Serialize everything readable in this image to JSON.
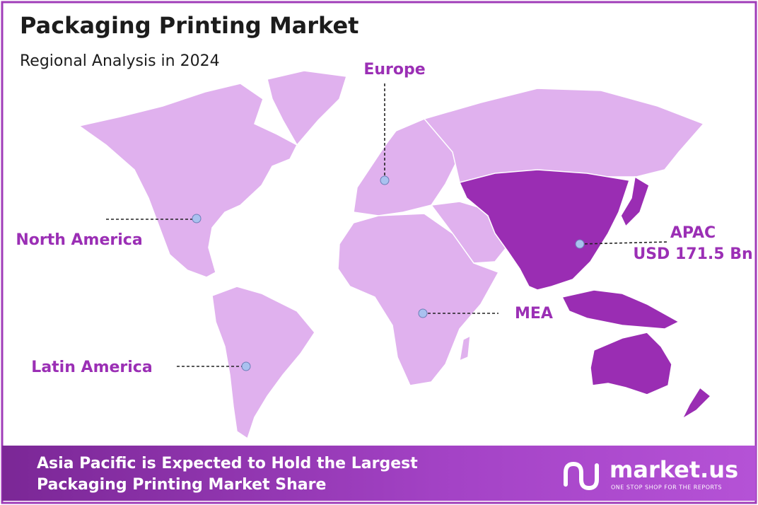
{
  "header": {
    "title": "Packaging Printing Market",
    "subtitle": "Regional Analysis in 2024"
  },
  "regions": [
    {
      "label": "Europe"
    },
    {
      "label": "North America"
    },
    {
      "label": "Latin America"
    },
    {
      "label": "MEA"
    },
    {
      "label": "APAC",
      "value": "USD 171.5 Bn"
    }
  ],
  "footer": {
    "lines": [
      "Asia Pacific is Expected to Hold the Largest",
      "Packaging Printing Market Share"
    ],
    "brand": "market.us",
    "tagline": "ONE STOP SHOP FOR THE REPORTS"
  }
}
